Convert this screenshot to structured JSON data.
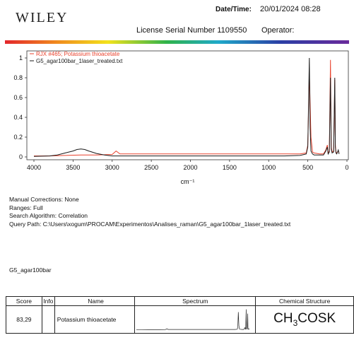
{
  "header": {
    "logo_text": "WILEY",
    "date_label": "Date/Time:",
    "date_value": "20/01/2024 08:28",
    "serial_text": "License Serial Number 1109550",
    "operator_label": "Operator:"
  },
  "chart_data": {
    "type": "line",
    "xlabel": "cm⁻¹",
    "ylabel": "",
    "xlim": [
      4000,
      0
    ],
    "ylim": [
      0,
      1
    ],
    "x_reversed": true,
    "x_ticks": [
      4000,
      3500,
      3000,
      2500,
      2000,
      1500,
      1000,
      500,
      0
    ],
    "x_tick_labels": [
      "4000",
      "3500",
      "3000",
      "2500",
      "2000",
      "1500",
      "1000",
      "500",
      "0"
    ],
    "y_ticks": [
      0,
      0.2,
      0.4,
      0.6,
      0.8,
      1
    ],
    "y_tick_labels": [
      "0",
      "0.2",
      "0.4",
      "0.6",
      "0.8",
      "1"
    ],
    "legend_position": "top-left",
    "series": [
      {
        "name": "RJX #465; Potassium thioacetate",
        "color": "#e8412c",
        "x": [
          4000,
          3800,
          3600,
          3400,
          3200,
          3000,
          2950,
          2900,
          2800,
          2500,
          2000,
          1500,
          1200,
          1000,
          800,
          600,
          520,
          500,
          480,
          460,
          440,
          420,
          350,
          300,
          270,
          250,
          240,
          225,
          210,
          200,
          190,
          170,
          155,
          148,
          140,
          130,
          120,
          110,
          100
        ],
        "y": [
          0.01,
          0.01,
          0.015,
          0.02,
          0.02,
          0.025,
          0.06,
          0.03,
          0.03,
          0.03,
          0.03,
          0.03,
          0.03,
          0.03,
          0.03,
          0.03,
          0.04,
          0.12,
          0.85,
          0.2,
          0.05,
          0.04,
          0.03,
          0.03,
          0.07,
          0.12,
          0.04,
          0.06,
          0.98,
          0.1,
          0.05,
          0.06,
          0.78,
          0.12,
          0.05,
          0.04,
          0.05,
          0.06,
          0.04
        ]
      },
      {
        "name": "G5_agar100bar_1laser_treated.txt",
        "color": "#1a1a1a",
        "x": [
          4000,
          3800,
          3700,
          3600,
          3500,
          3450,
          3400,
          3350,
          3300,
          3200,
          3100,
          3000,
          2900,
          2800,
          2500,
          2000,
          1500,
          1200,
          1000,
          800,
          600,
          520,
          500,
          480,
          470,
          460,
          440,
          420,
          350,
          300,
          270,
          250,
          240,
          225,
          210,
          200,
          190,
          170,
          155,
          148,
          140,
          130,
          120,
          110,
          100
        ],
        "y": [
          0.005,
          0.01,
          0.02,
          0.04,
          0.06,
          0.075,
          0.08,
          0.075,
          0.06,
          0.035,
          0.02,
          0.01,
          0.01,
          0.01,
          0.01,
          0.01,
          0.01,
          0.01,
          0.01,
          0.01,
          0.015,
          0.03,
          0.1,
          1.0,
          0.3,
          0.06,
          0.03,
          0.02,
          0.02,
          0.02,
          0.06,
          0.1,
          0.03,
          0.05,
          0.8,
          0.08,
          0.04,
          0.05,
          0.8,
          0.1,
          0.04,
          0.03,
          0.05,
          0.07,
          0.03
        ]
      }
    ]
  },
  "info": {
    "manual_corrections": "Manual Corrections: None",
    "ranges": "Ranges: Full",
    "search_algorithm": "Search Algorithm: Correlation",
    "query_path": "Query Path: C:\\Users\\xogum\\PROCAM\\Experimentos\\Analises_raman\\G5_agar100bar_1laser_treated.txt"
  },
  "sample_name": "G5_agar100bar",
  "results_table": {
    "headers": {
      "score": "Score",
      "info": "Info",
      "name": "Name",
      "spectrum": "Spectrum",
      "structure": "Chemical Structure"
    },
    "rows": [
      {
        "score": "83,29",
        "info": "",
        "name": "Potassium thioacetate",
        "structure_prefix": "CH",
        "structure_sub": "3",
        "structure_suffix": "COSK"
      }
    ]
  }
}
